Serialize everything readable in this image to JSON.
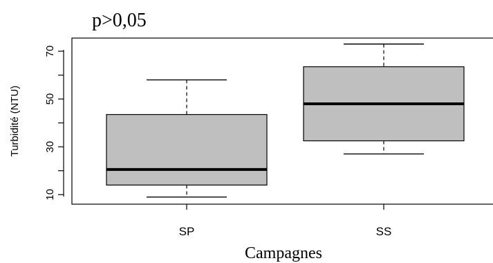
{
  "chart_data": {
    "type": "boxplot",
    "annotation": "p>0,05",
    "xlabel": "Campagnes",
    "ylabel": "Turbidité (NTU)",
    "ylim": [
      6,
      75.5
    ],
    "yticks": [
      10,
      30,
      50,
      70
    ],
    "ytick_labels": [
      "10",
      "30",
      "50",
      "70"
    ],
    "categories": [
      "SP",
      "SS"
    ],
    "boxes": [
      {
        "label": "SP",
        "min": 9,
        "q1": 14,
        "median": 20.5,
        "q3": 43.5,
        "max": 58
      },
      {
        "label": "SS",
        "min": 27,
        "q1": 32.5,
        "median": 48,
        "q3": 63.5,
        "max": 73
      }
    ],
    "box_fill": "#bfbfbf",
    "grid": false,
    "legend": "none"
  }
}
